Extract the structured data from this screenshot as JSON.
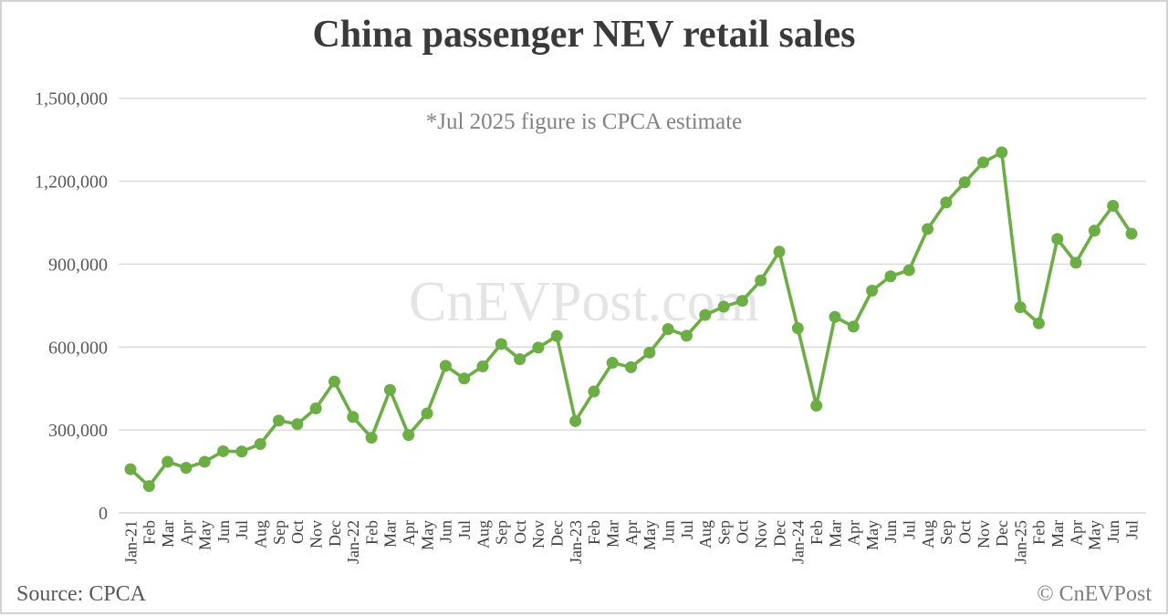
{
  "page": {
    "title": "China passenger NEV retail sales",
    "annotation": "*Jul 2025 figure is CPCA estimate",
    "watermark": "CnEVPost.com",
    "source_label": "Source: CPCA",
    "copyright_label": "© CnEVPost"
  },
  "colors": {
    "line": "#6cad45",
    "marker": "#6cad45",
    "grid": "#d9d9d9",
    "y_tick_text": "#595959",
    "x_tick_text": "#3f3f3f",
    "title_text": "#3a3a3a",
    "annotation_text": "#828282",
    "watermark_text": "#e4e4e4"
  },
  "chart_data": {
    "type": "line",
    "title": "China passenger NEV retail sales",
    "xlabel": "",
    "ylabel": "",
    "ylim": [
      0,
      1500000
    ],
    "grid": true,
    "legend": "none",
    "marker": "circle",
    "yticks": [
      {
        "value": 0,
        "label": "0"
      },
      {
        "value": 300000,
        "label": "300,000"
      },
      {
        "value": 600000,
        "label": "600,000"
      },
      {
        "value": 900000,
        "label": "900,000"
      },
      {
        "value": 1200000,
        "label": "1,200,000"
      },
      {
        "value": 1500000,
        "label": "1,500,000"
      }
    ],
    "categories": [
      "Jan-21",
      "Feb",
      "Mar",
      "Apr",
      "May",
      "Jun",
      "Jul",
      "Aug",
      "Sep",
      "Oct",
      "Nov",
      "Dec",
      "Jan-22",
      "Feb",
      "Mar",
      "Apr",
      "May",
      "Jun",
      "Jul",
      "Aug",
      "Sep",
      "Oct",
      "Nov",
      "Dec",
      "Jan-23",
      "Feb",
      "Mar",
      "Apr",
      "May",
      "Jun",
      "Jul",
      "Aug",
      "Sep",
      "Oct",
      "Nov",
      "Dec",
      "Jan-24",
      "Feb",
      "Mar",
      "Apr",
      "May",
      "Jun",
      "Jul",
      "Aug",
      "Sep",
      "Oct",
      "Nov",
      "Dec",
      "Jan-25",
      "Feb",
      "Mar",
      "Apr",
      "May",
      "Jun",
      "Jul"
    ],
    "values": [
      158000,
      97000,
      185000,
      163000,
      185000,
      223000,
      222000,
      249000,
      334000,
      321000,
      378000,
      475000,
      347000,
      272000,
      445000,
      282000,
      360000,
      532000,
      486000,
      530000,
      611000,
      556000,
      598000,
      640000,
      332000,
      439000,
      543000,
      527000,
      580000,
      665000,
      641000,
      716000,
      746000,
      767000,
      841000,
      945000,
      668000,
      388000,
      709000,
      674000,
      804000,
      856000,
      878000,
      1027000,
      1123000,
      1196000,
      1268000,
      1304000,
      744000,
      686000,
      991000,
      905000,
      1021000,
      1111000,
      1010000
    ]
  }
}
